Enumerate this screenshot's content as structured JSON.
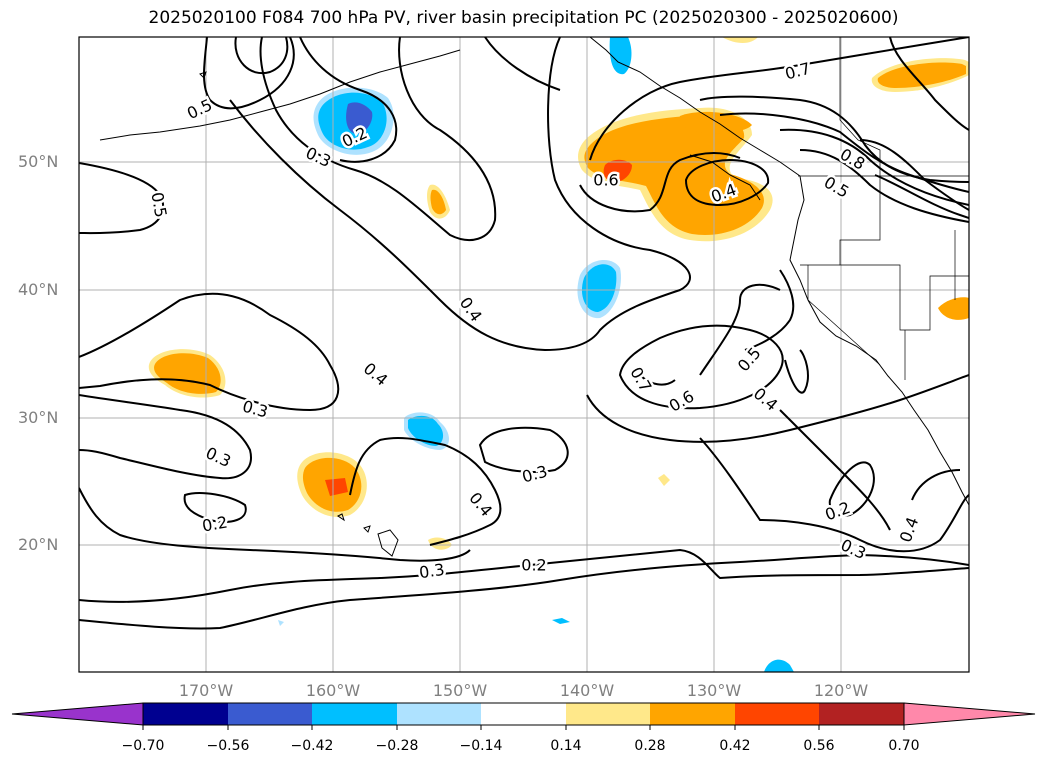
{
  "title": "2025020100 F084 700 hPa PV, river basin precipitation PC (2025020300 - 2025020600)",
  "lat_labels": [
    "50°N",
    "40°N",
    "30°N",
    "20°N"
  ],
  "lon_labels": [
    "170°W",
    "160°W",
    "150°W",
    "140°W",
    "130°W",
    "120°W"
  ],
  "contour_labels": [
    "0.5",
    "0.2",
    "0.3",
    "0.5",
    "0.7",
    "0.6",
    "0.4",
    "0.8",
    "0.5",
    "0.4",
    "0.4",
    "0.3",
    "0.3",
    "0.5",
    "0.7",
    "0.6",
    "0.4",
    "0.3",
    "0.4",
    "0.2",
    "0.3",
    "0.2",
    "0.2",
    "0.3",
    "0.4"
  ],
  "colorbar": {
    "ticks": [
      "−0.70",
      "−0.56",
      "−0.42",
      "−0.28",
      "−0.14",
      "0.14",
      "0.28",
      "0.42",
      "0.56",
      "0.70"
    ],
    "colors": [
      "#9933cc",
      "#000090",
      "#3a5bd0",
      "#00bfff",
      "#aee2ff",
      "#ffffff",
      "#ffe88a",
      "#ffa500",
      "#ff4500",
      "#b22222",
      "#ff88aa"
    ]
  },
  "colors": {
    "contour": "#000000",
    "grid": "#b0b0b0",
    "coast": "#000000"
  }
}
